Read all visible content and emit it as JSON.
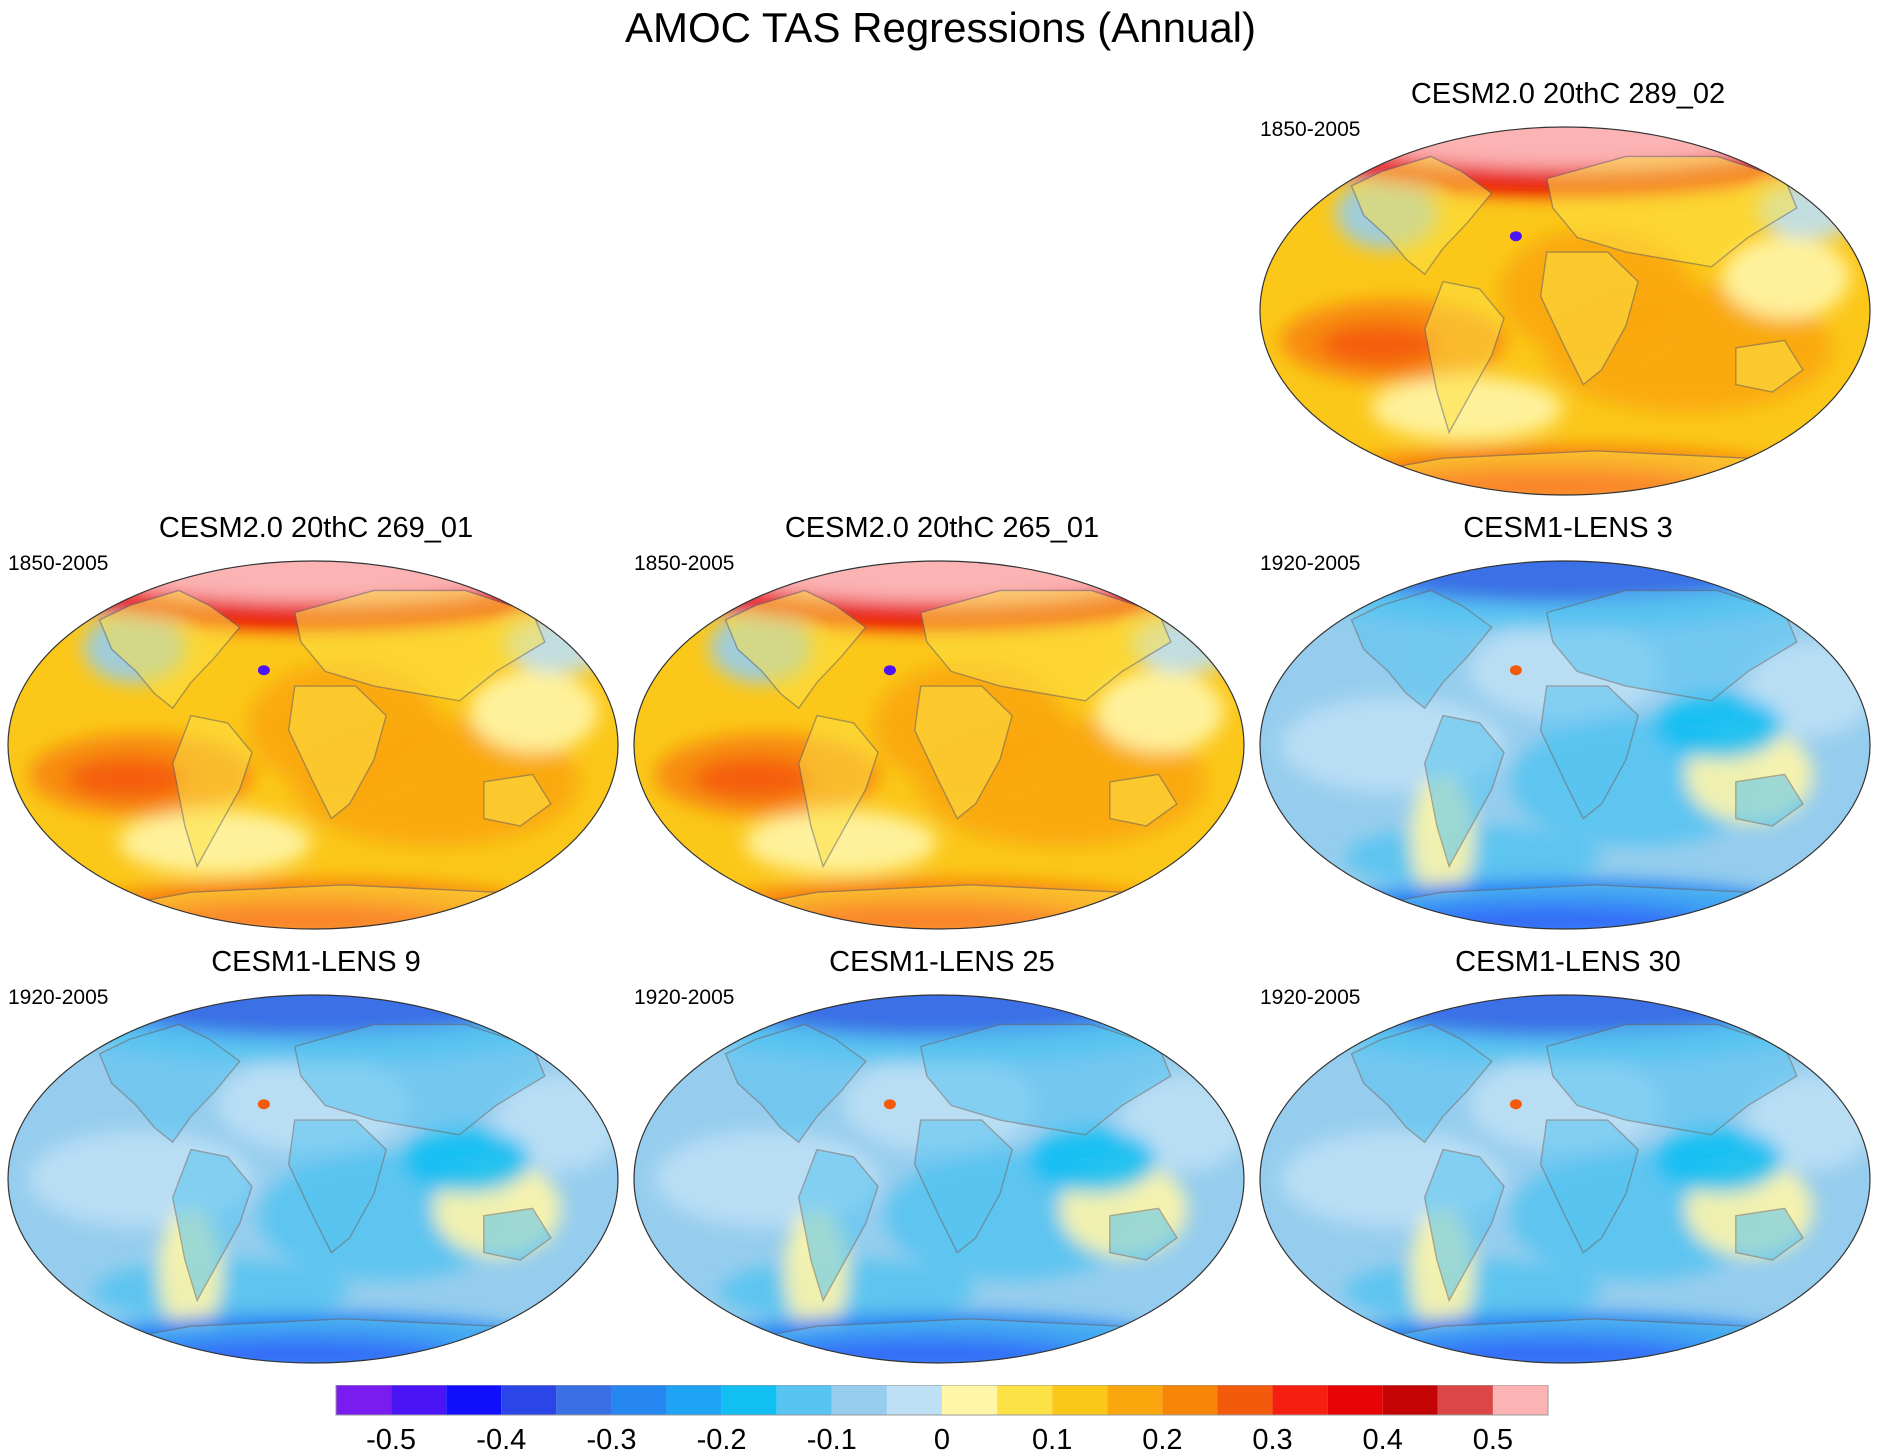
{
  "title": "AMOC TAS Regressions (Annual)",
  "panels": [
    {
      "id": "p289",
      "title": "CESM2.0 20thC 289_02",
      "period": "1850-2005",
      "scheme": "warm"
    },
    {
      "id": "p269",
      "title": "CESM2.0 20thC 269_01",
      "period": "1850-2005",
      "scheme": "warm"
    },
    {
      "id": "p265",
      "title": "CESM2.0 20thC 265_01",
      "period": "1850-2005",
      "scheme": "warm"
    },
    {
      "id": "l3",
      "title": "CESM1-LENS 3",
      "period": "1920-2005",
      "scheme": "cool"
    },
    {
      "id": "l9",
      "title": "CESM1-LENS 9",
      "period": "1920-2005",
      "scheme": "cool"
    },
    {
      "id": "l25",
      "title": "CESM1-LENS 25",
      "period": "1920-2005",
      "scheme": "cool"
    },
    {
      "id": "l30",
      "title": "CESM1-LENS 30",
      "period": "1920-2005",
      "scheme": "cool"
    }
  ],
  "colorbar": {
    "colors": [
      "#7a1cf0",
      "#4a14f5",
      "#1010ff",
      "#2a46e8",
      "#3a6fe6",
      "#2787f2",
      "#1ea3f5",
      "#12bff3",
      "#58c4f1",
      "#96cdee",
      "#bde0f5",
      "#fff6a8",
      "#fde246",
      "#fbc719",
      "#f9a70c",
      "#f78508",
      "#f45a0c",
      "#f51e10",
      "#e80404",
      "#c40404",
      "#dc4646",
      "#fcb3b3"
    ],
    "ticks": [
      "-0.5",
      "-0.4",
      "-0.3",
      "-0.2",
      "-0.1",
      "0",
      "0.1",
      "0.2",
      "0.3",
      "0.4",
      "0.5"
    ]
  }
}
